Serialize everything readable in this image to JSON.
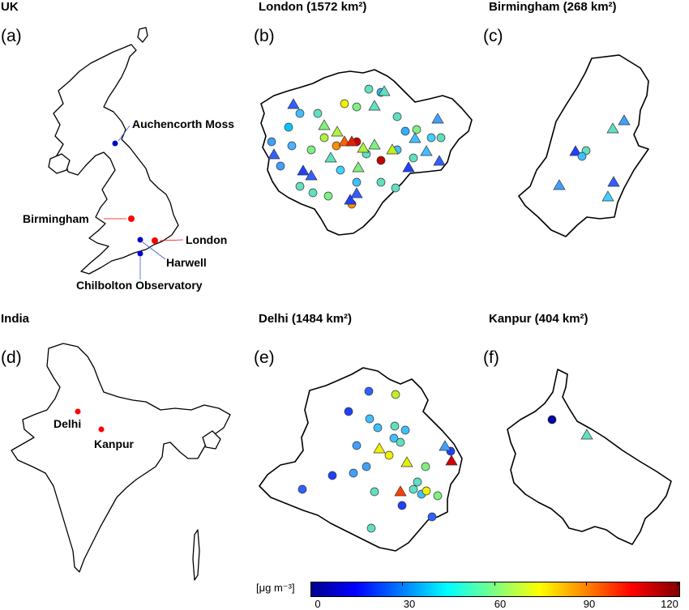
{
  "regions": {
    "uk": "UK",
    "india": "India"
  },
  "panels": {
    "a": "(a)",
    "b": "(b)",
    "c": "(c)",
    "d": "(d)",
    "e": "(e)",
    "f": "(f)"
  },
  "city_titles": {
    "london": "London (1572 km²)",
    "birmingham": "Birmingham (268 km²)",
    "delhi": "Delhi (1484 km²)",
    "kanpur": "Kanpur (404 km²)"
  },
  "uk_labels": {
    "auchencorth": "Auchencorth Moss",
    "birmingham": "Birmingham",
    "london": "London",
    "harwell": "Harwell",
    "chilbolton": "Chilbolton Observatory"
  },
  "india_labels": {
    "delhi": "Delhi",
    "kanpur": "Kanpur"
  },
  "colorbar": {
    "unit": "[μg m⁻³]",
    "ticks": [
      "0",
      "30",
      "60",
      "90",
      "120"
    ],
    "min": 0,
    "max": 120
  },
  "colors": {
    "marker_red": "#ff0000",
    "marker_blue": "#0000cc",
    "outline": "#000000"
  },
  "marker_shapes": [
    "circle",
    "triangle"
  ]
}
